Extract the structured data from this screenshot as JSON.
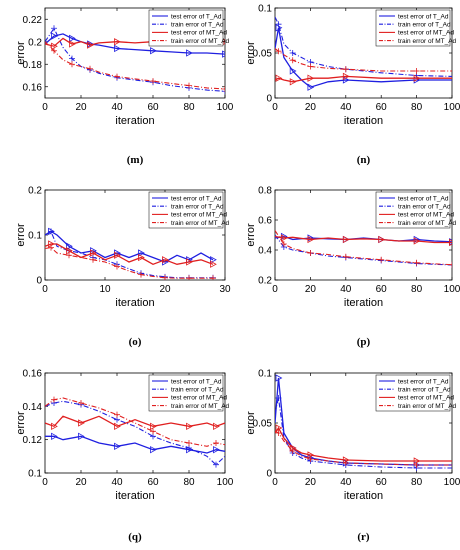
{
  "legend_entries": [
    "test error of T_Ad",
    "train error of T_Ad",
    "test error of MT_Ad",
    "train error of MT_Ad"
  ],
  "colors": {
    "t_ad": "#1f1fe0",
    "mt_ad": "#e01f1f"
  },
  "chart_data": [
    {
      "panel": "(m)",
      "type": "line",
      "xlabel": "iteration",
      "ylabel": "error",
      "xlim": [
        0,
        100
      ],
      "ylim": [
        0.15,
        0.23
      ],
      "xticks": [
        "0",
        "20",
        "40",
        "60",
        "80",
        "100"
      ],
      "yticks": [
        "0.16",
        "0.18",
        "0.2",
        "0.22"
      ],
      "x": [
        0,
        5,
        10,
        15,
        20,
        25,
        30,
        40,
        50,
        60,
        70,
        80,
        90,
        100
      ],
      "series": [
        {
          "name": "test error of T_Ad",
          "values": [
            0.198,
            0.205,
            0.207,
            0.203,
            0.2,
            0.198,
            0.197,
            0.194,
            0.193,
            0.192,
            0.191,
            0.19,
            0.19,
            0.189
          ]
        },
        {
          "name": "train error of T_Ad",
          "values": [
            0.2,
            0.212,
            0.195,
            0.185,
            0.178,
            0.175,
            0.172,
            0.168,
            0.166,
            0.164,
            0.161,
            0.159,
            0.157,
            0.156
          ]
        },
        {
          "name": "test error of MT_Ad",
          "values": [
            0.198,
            0.196,
            0.203,
            0.198,
            0.2,
            0.197,
            0.199,
            0.2,
            0.199,
            0.2,
            0.199,
            0.2,
            0.199,
            0.2
          ]
        },
        {
          "name": "train error of MT_Ad",
          "values": [
            0.2,
            0.192,
            0.184,
            0.18,
            0.178,
            0.176,
            0.173,
            0.169,
            0.167,
            0.165,
            0.163,
            0.161,
            0.159,
            0.158
          ]
        }
      ]
    },
    {
      "panel": "(n)",
      "type": "line",
      "xlabel": "iteration",
      "ylabel": "error",
      "xlim": [
        0,
        100
      ],
      "ylim": [
        0,
        0.1
      ],
      "xticks": [
        "0",
        "20",
        "40",
        "60",
        "80",
        "100"
      ],
      "yticks": [
        "0",
        "0.05",
        "0.1"
      ],
      "x": [
        0,
        2,
        5,
        10,
        15,
        20,
        30,
        40,
        60,
        80,
        100
      ],
      "series": [
        {
          "name": "test error of T_Ad",
          "values": [
            0.055,
            0.078,
            0.045,
            0.03,
            0.02,
            0.012,
            0.018,
            0.02,
            0.018,
            0.02,
            0.02
          ]
        },
        {
          "name": "train error of T_Ad",
          "values": [
            0.09,
            0.082,
            0.06,
            0.05,
            0.045,
            0.04,
            0.035,
            0.032,
            0.028,
            0.025,
            0.024
          ]
        },
        {
          "name": "test error of MT_Ad",
          "values": [
            0.02,
            0.022,
            0.02,
            0.018,
            0.02,
            0.022,
            0.022,
            0.024,
            0.022,
            0.022,
            0.022
          ]
        },
        {
          "name": "train error of MT_Ad",
          "values": [
            0.055,
            0.052,
            0.048,
            0.042,
            0.038,
            0.035,
            0.033,
            0.032,
            0.03,
            0.03,
            0.03
          ]
        }
      ]
    },
    {
      "panel": "(o)",
      "type": "line",
      "xlabel": "iteration",
      "ylabel": "error",
      "xlim": [
        0,
        30
      ],
      "ylim": [
        0,
        0.2
      ],
      "xticks": [
        "0",
        "10",
        "20",
        "30"
      ],
      "yticks": [
        "0",
        "0.1",
        "0.2"
      ],
      "x": [
        0,
        1,
        2,
        4,
        6,
        8,
        10,
        12,
        14,
        16,
        18,
        20,
        22,
        24,
        26,
        28
      ],
      "series": [
        {
          "name": "test error of T_Ad",
          "values": [
            0.1,
            0.108,
            0.1,
            0.075,
            0.06,
            0.065,
            0.05,
            0.06,
            0.05,
            0.06,
            0.05,
            0.04,
            0.055,
            0.045,
            0.06,
            0.045
          ]
        },
        {
          "name": "train error of T_Ad",
          "values": [
            0.1,
            0.108,
            0.075,
            0.065,
            0.06,
            0.05,
            0.045,
            0.035,
            0.025,
            0.015,
            0.01,
            0.007,
            0.005,
            0.005,
            0.005,
            0.005
          ]
        },
        {
          "name": "test error of MT_Ad",
          "values": [
            0.075,
            0.08,
            0.08,
            0.065,
            0.05,
            0.06,
            0.045,
            0.055,
            0.04,
            0.05,
            0.035,
            0.045,
            0.035,
            0.04,
            0.045,
            0.035
          ]
        },
        {
          "name": "train error of MT_Ad",
          "values": [
            0.07,
            0.072,
            0.06,
            0.055,
            0.05,
            0.045,
            0.04,
            0.03,
            0.02,
            0.012,
            0.008,
            0.005,
            0.004,
            0.004,
            0.004,
            0.004
          ]
        }
      ]
    },
    {
      "panel": "(p)",
      "type": "line",
      "xlabel": "iteration",
      "ylabel": "error",
      "xlim": [
        0,
        100
      ],
      "ylim": [
        0.2,
        0.8
      ],
      "xticks": [
        "0",
        "20",
        "40",
        "60",
        "80",
        "100"
      ],
      "yticks": [
        "0.2",
        "0.4",
        "0.6",
        "0.8"
      ],
      "x": [
        0,
        5,
        10,
        20,
        30,
        40,
        50,
        60,
        70,
        80,
        90,
        100
      ],
      "series": [
        {
          "name": "test error of T_Ad",
          "values": [
            0.48,
            0.49,
            0.47,
            0.48,
            0.475,
            0.47,
            0.48,
            0.47,
            0.46,
            0.47,
            0.46,
            0.455
          ]
        },
        {
          "name": "train error of T_Ad",
          "values": [
            0.5,
            0.42,
            0.4,
            0.38,
            0.36,
            0.35,
            0.34,
            0.33,
            0.32,
            0.31,
            0.305,
            0.3
          ]
        },
        {
          "name": "test error of MT_Ad",
          "values": [
            0.49,
            0.48,
            0.485,
            0.47,
            0.48,
            0.47,
            0.475,
            0.47,
            0.46,
            0.46,
            0.45,
            0.45
          ]
        },
        {
          "name": "train error of MT_Ad",
          "values": [
            0.53,
            0.44,
            0.41,
            0.38,
            0.37,
            0.355,
            0.345,
            0.335,
            0.325,
            0.315,
            0.308,
            0.302
          ]
        }
      ]
    },
    {
      "panel": "(q)",
      "type": "line",
      "xlabel": "iteration",
      "ylabel": "error",
      "xlim": [
        0,
        100
      ],
      "ylim": [
        0.1,
        0.16
      ],
      "xticks": [
        "0",
        "20",
        "40",
        "60",
        "80",
        "100"
      ],
      "yticks": [
        "0.1",
        "0.12",
        "0.14",
        "0.16"
      ],
      "x": [
        0,
        5,
        10,
        20,
        30,
        40,
        50,
        60,
        70,
        80,
        90,
        95,
        100
      ],
      "series": [
        {
          "name": "test error of T_Ad",
          "values": [
            0.122,
            0.122,
            0.12,
            0.122,
            0.118,
            0.116,
            0.118,
            0.114,
            0.116,
            0.114,
            0.112,
            0.114,
            0.113
          ]
        },
        {
          "name": "train error of T_Ad",
          "values": [
            0.14,
            0.142,
            0.143,
            0.141,
            0.137,
            0.132,
            0.128,
            0.122,
            0.118,
            0.115,
            0.11,
            0.105,
            0.11
          ]
        },
        {
          "name": "test error of MT_Ad",
          "values": [
            0.13,
            0.128,
            0.134,
            0.13,
            0.134,
            0.128,
            0.132,
            0.128,
            0.13,
            0.128,
            0.13,
            0.128,
            0.13
          ]
        },
        {
          "name": "train error of MT_Ad",
          "values": [
            0.14,
            0.144,
            0.145,
            0.142,
            0.139,
            0.135,
            0.13,
            0.125,
            0.12,
            0.118,
            0.116,
            0.118,
            0.117
          ]
        }
      ]
    },
    {
      "panel": "(r)",
      "type": "line",
      "xlabel": "iteration",
      "ylabel": "error",
      "xlim": [
        0,
        100
      ],
      "ylim": [
        0,
        0.1
      ],
      "xticks": [
        "0",
        "20",
        "40",
        "60",
        "80",
        "100"
      ],
      "yticks": [
        "0",
        "0.05",
        "0.1"
      ],
      "x": [
        0,
        2,
        5,
        10,
        15,
        20,
        30,
        40,
        60,
        80,
        100
      ],
      "series": [
        {
          "name": "test error of T_Ad",
          "values": [
            0.05,
            0.095,
            0.04,
            0.025,
            0.018,
            0.015,
            0.012,
            0.01,
            0.009,
            0.008,
            0.008
          ]
        },
        {
          "name": "train error of T_Ad",
          "values": [
            0.06,
            0.075,
            0.035,
            0.02,
            0.015,
            0.012,
            0.01,
            0.008,
            0.006,
            0.005,
            0.005
          ]
        },
        {
          "name": "test error of MT_Ad",
          "values": [
            0.04,
            0.045,
            0.035,
            0.025,
            0.02,
            0.018,
            0.015,
            0.013,
            0.012,
            0.012,
            0.012
          ]
        },
        {
          "name": "train error of MT_Ad",
          "values": [
            0.042,
            0.04,
            0.032,
            0.022,
            0.017,
            0.014,
            0.012,
            0.01,
            0.009,
            0.008,
            0.008
          ]
        }
      ]
    }
  ]
}
